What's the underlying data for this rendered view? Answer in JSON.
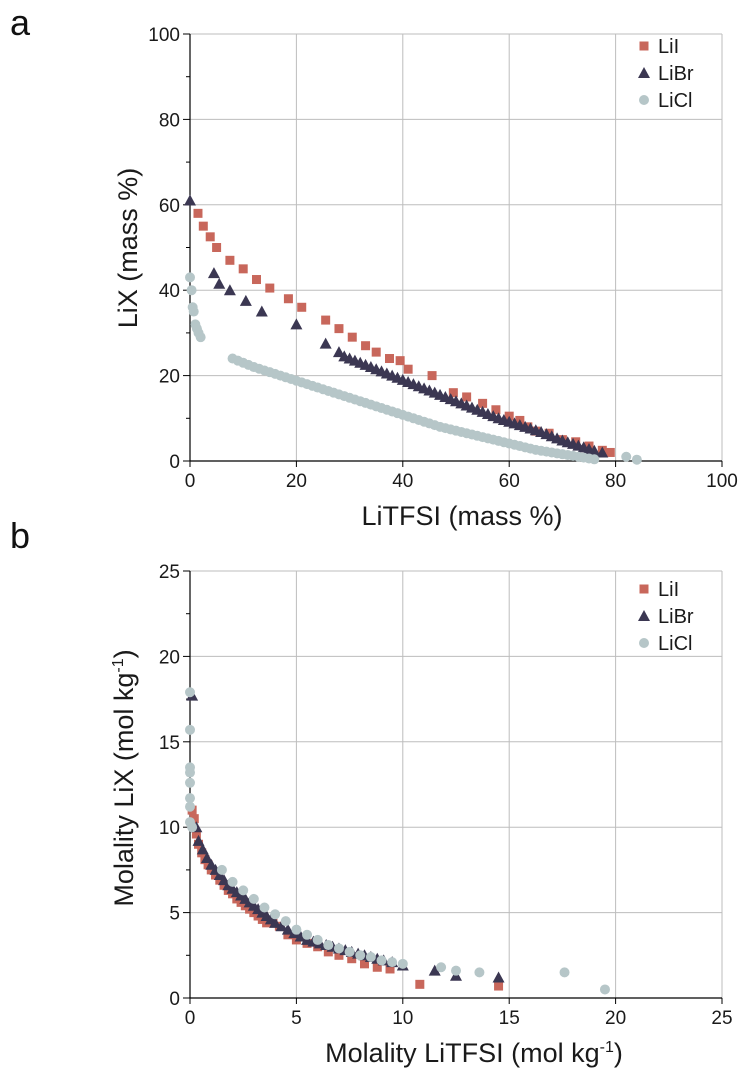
{
  "series_styles": {
    "LiI": {
      "color": "#c8675b",
      "marker": "square"
    },
    "LiBr": {
      "color": "#3b3752",
      "marker": "triangle"
    },
    "LiCl": {
      "color": "#b6c6c8",
      "marker": "circle"
    }
  },
  "chart_data": [
    {
      "type": "scatter",
      "panel_label": "a",
      "xlabel": "LiTFSI (mass %)",
      "ylabel": "LiX (mass %)",
      "xlim": [
        0,
        100
      ],
      "ylim": [
        0,
        100
      ],
      "xticks": [
        0,
        20,
        40,
        60,
        80,
        100
      ],
      "yticks": [
        0,
        20,
        40,
        60,
        80,
        100
      ],
      "xtick_labels": [
        "0",
        "20",
        "40",
        "60",
        "80",
        "100"
      ],
      "ytick_labels": [
        "0",
        "20",
        "40",
        "60",
        "80",
        "100"
      ],
      "grid": true,
      "legend_position": "top-right",
      "series": [
        {
          "name": "LiI",
          "x": [
            1.5,
            2.5,
            3.8,
            5,
            7.5,
            10,
            12.5,
            15,
            18.5,
            21,
            25.5,
            28,
            30.5,
            33,
            35,
            37.5,
            39.5,
            41,
            45.5,
            49.5,
            52,
            55,
            57.5,
            60,
            62,
            63.5,
            65,
            67.5,
            70,
            72.5,
            75,
            77.5,
            79
          ],
          "y": [
            58,
            55,
            52.5,
            50,
            47,
            45,
            42.5,
            40.5,
            38,
            36,
            33,
            31,
            29,
            27,
            25.5,
            24,
            23.5,
            21.5,
            20,
            16,
            15,
            13.5,
            12,
            10.5,
            9.5,
            8,
            7,
            6.5,
            5,
            4.5,
            3.5,
            2.5,
            2
          ]
        },
        {
          "name": "LiBr",
          "x": [
            0,
            4.5,
            5.5,
            7.5,
            10.5,
            13.5,
            20,
            25.5,
            28,
            29,
            30,
            31,
            32,
            33,
            34,
            35,
            36,
            37,
            38,
            39,
            40,
            41,
            42,
            43,
            44,
            45,
            46,
            47,
            48,
            49,
            50,
            51,
            52,
            53,
            54,
            55,
            56,
            57,
            58,
            59,
            60,
            61,
            62,
            63,
            64,
            65,
            66,
            67,
            68,
            69,
            70,
            71,
            72,
            73,
            74,
            75,
            76,
            77.5
          ],
          "y": [
            61,
            44,
            41.5,
            40,
            37.5,
            35,
            32,
            27.5,
            25.5,
            24.5,
            24,
            23.5,
            23,
            22.5,
            22,
            21.5,
            21,
            20.5,
            20,
            19.5,
            19,
            18.5,
            18,
            17.5,
            17,
            16.5,
            16,
            15.5,
            15,
            14.5,
            14,
            13.5,
            13,
            12.5,
            12,
            11.5,
            11,
            10.5,
            10,
            9.6,
            9.2,
            8.8,
            8.4,
            8,
            7.6,
            7.2,
            6.8,
            6.3,
            5.8,
            5.3,
            4.8,
            4.4,
            4,
            3.6,
            3.2,
            2.8,
            2.4,
            2
          ]
        },
        {
          "name": "LiCl",
          "x": [
            0,
            0.3,
            0.5,
            0.7,
            1,
            1.3,
            1.6,
            2,
            8,
            9,
            10,
            11,
            12,
            13,
            14,
            15,
            16,
            17,
            18,
            19,
            20,
            21,
            22,
            23,
            24,
            25,
            26,
            27,
            28,
            29,
            30,
            31,
            32,
            33,
            34,
            35,
            36,
            37,
            38,
            39,
            40,
            41,
            42,
            43,
            44,
            45,
            46,
            47,
            48,
            49,
            50,
            51,
            52,
            53,
            54,
            55,
            56,
            57,
            58,
            59,
            60,
            61,
            62,
            63,
            64,
            65,
            66,
            67,
            68,
            69,
            70,
            71,
            72,
            73,
            74,
            75,
            76,
            82,
            84
          ],
          "y": [
            43,
            40,
            36,
            35,
            32,
            31,
            30,
            29,
            24,
            23.5,
            23,
            22.5,
            22,
            21.6,
            21.2,
            20.8,
            20.4,
            20,
            19.6,
            19.2,
            18.8,
            18.4,
            18,
            17.6,
            17.2,
            16.8,
            16.4,
            16,
            15.6,
            15.2,
            14.8,
            14.4,
            14,
            13.6,
            13.2,
            12.8,
            12.4,
            12,
            11.6,
            11.2,
            10.8,
            10.4,
            10,
            9.6,
            9.2,
            8.8,
            8.4,
            8,
            7.7,
            7.4,
            7.1,
            6.8,
            6.5,
            6.2,
            5.9,
            5.6,
            5.3,
            5,
            4.7,
            4.4,
            4.1,
            3.8,
            3.5,
            3.2,
            2.9,
            2.6,
            2.4,
            2.2,
            2,
            1.8,
            1.6,
            1.4,
            1.2,
            1,
            0.8,
            0.6,
            0.4,
            1,
            0.3
          ]
        }
      ]
    },
    {
      "type": "scatter",
      "panel_label": "b",
      "xlabel": "Molality LiTFSI (mol kg",
      "xlabel_sup": "-1",
      "xlabel_end": ")",
      "ylabel": "Molality LiX (mol kg",
      "ylabel_sup": "-1",
      "ylabel_end": ")",
      "xlim": [
        0,
        25
      ],
      "ylim": [
        0,
        25
      ],
      "xticks": [
        0,
        5,
        10,
        15,
        20,
        25
      ],
      "yticks": [
        0,
        5,
        10,
        15,
        20,
        25
      ],
      "xtick_labels": [
        "0",
        "5",
        "10",
        "15",
        "20",
        "25"
      ],
      "ytick_labels": [
        "0",
        "5",
        "10",
        "15",
        "20",
        "25"
      ],
      "grid": true,
      "legend_position": "top-right",
      "series": [
        {
          "name": "LiI",
          "x": [
            0.1,
            0.2,
            0.3,
            0.4,
            0.55,
            0.7,
            0.85,
            1,
            1.2,
            1.4,
            1.6,
            1.8,
            2,
            2.2,
            2.4,
            2.6,
            2.8,
            3,
            3.2,
            3.4,
            3.6,
            3.9,
            4.2,
            4.6,
            5,
            5.5,
            6,
            6.5,
            7,
            7.6,
            8.2,
            8.8,
            9.4,
            10.8,
            14.5
          ],
          "y": [
            11,
            10.5,
            9.6,
            9,
            8.5,
            8.1,
            7.8,
            7.5,
            7.2,
            6.9,
            6.6,
            6.3,
            6.1,
            5.8,
            5.6,
            5.4,
            5.2,
            5,
            4.8,
            4.6,
            4.4,
            4.5,
            4.2,
            3.7,
            3.4,
            3.2,
            3,
            2.7,
            2.5,
            2.3,
            2,
            1.8,
            1.7,
            0.8,
            0.7
          ]
        },
        {
          "name": "LiBr",
          "x": [
            0.1,
            0.3,
            0.4,
            0.6,
            0.8,
            1,
            1.2,
            1.4,
            1.6,
            1.8,
            2,
            2.2,
            2.4,
            2.6,
            2.8,
            3,
            3.2,
            3.4,
            3.6,
            3.8,
            4,
            4.3,
            4.6,
            4.9,
            5.2,
            5.5,
            5.8,
            6.1,
            6.4,
            6.7,
            7,
            7.3,
            7.6,
            7.9,
            8.2,
            8.5,
            8.8,
            9.1,
            9.5,
            10,
            11.5,
            12.5,
            14.5
          ],
          "y": [
            17.7,
            10,
            9.2,
            8.7,
            8.2,
            7.8,
            7.5,
            7.2,
            6.9,
            6.6,
            6.4,
            6.2,
            6,
            5.8,
            5.6,
            5.4,
            5.2,
            5,
            4.8,
            4.6,
            4.4,
            4.2,
            4,
            3.8,
            3.6,
            3.4,
            3.3,
            3.2,
            3.1,
            3,
            2.9,
            2.8,
            2.7,
            2.6,
            2.5,
            2.4,
            2.3,
            2.2,
            2.1,
            1.9,
            1.6,
            1.3,
            1.2
          ]
        },
        {
          "name": "LiCl",
          "x": [
            0,
            0,
            0,
            0,
            0,
            0,
            0,
            0,
            0.1,
            1.5,
            2,
            2.5,
            3,
            3.5,
            4,
            4.5,
            5,
            5.5,
            6,
            6.5,
            7,
            7.5,
            8,
            8.5,
            9,
            9.5,
            10,
            11.8,
            12.5,
            13.6,
            17.6,
            19.5
          ],
          "y": [
            17.9,
            15.7,
            13.5,
            13.2,
            12.6,
            11.7,
            11.2,
            10.3,
            10,
            7.5,
            6.8,
            6.3,
            5.8,
            5.3,
            4.9,
            4.5,
            4,
            3.7,
            3.4,
            3.1,
            2.9,
            2.7,
            2.5,
            2.4,
            2.2,
            2.1,
            2,
            1.8,
            1.6,
            1.5,
            1.5,
            0.5
          ]
        }
      ]
    }
  ]
}
